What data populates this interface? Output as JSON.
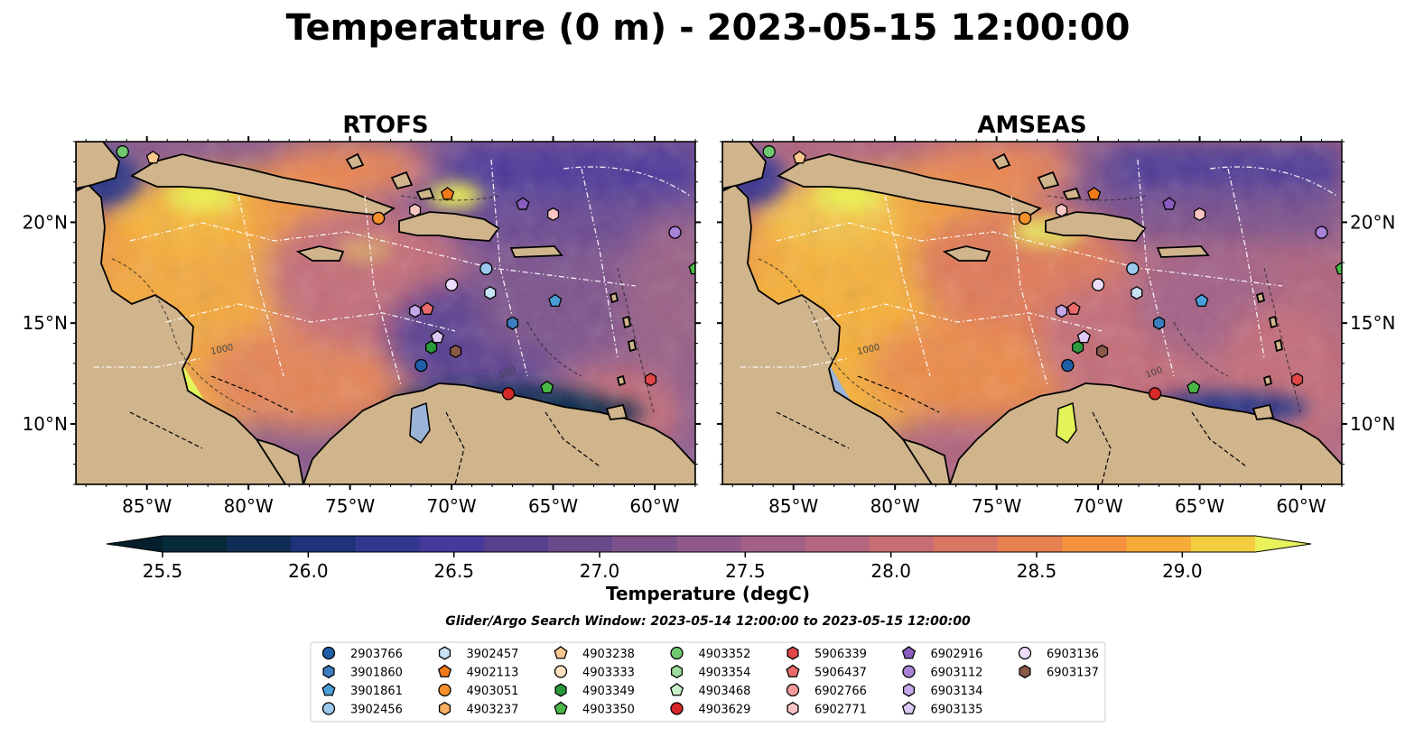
{
  "figure": {
    "title": "Temperature (0 m) - 2023-05-15 12:00:00",
    "search_window": "Glider/Argo Search Window: 2023-05-14 12:00:00 to 2023-05-15 12:00:00"
  },
  "panels": [
    {
      "title": "RTOFS"
    },
    {
      "title": "AMSEAS"
    }
  ],
  "axes": {
    "lon_range": [
      -88.5,
      -58.0
    ],
    "lat_range": [
      7.0,
      24.0
    ],
    "x_ticks": [
      {
        "value": -85,
        "label": "85°W"
      },
      {
        "value": -80,
        "label": "80°W"
      },
      {
        "value": -75,
        "label": "75°W"
      },
      {
        "value": -70,
        "label": "70°W"
      },
      {
        "value": -65,
        "label": "65°W"
      },
      {
        "value": -60,
        "label": "60°W"
      }
    ],
    "y_ticks": [
      {
        "value": 20,
        "label": "20°N"
      },
      {
        "value": 15,
        "label": "15°N"
      },
      {
        "value": 10,
        "label": "10°N"
      }
    ],
    "contour_labels": [
      "1000",
      "100"
    ]
  },
  "colorbar": {
    "label": "Temperature (degC)",
    "min": 25.5,
    "max": 29.25,
    "step": 0.25,
    "extend": "both",
    "ticks": [
      {
        "value": 25.5,
        "label": "25.5"
      },
      {
        "value": 26.0,
        "label": "26.0"
      },
      {
        "value": 26.5,
        "label": "26.5"
      },
      {
        "value": 27.0,
        "label": "27.0"
      },
      {
        "value": 27.5,
        "label": "27.5"
      },
      {
        "value": 28.0,
        "label": "28.0"
      },
      {
        "value": 28.5,
        "label": "28.5"
      },
      {
        "value": 29.0,
        "label": "29.0"
      }
    ],
    "colors": [
      "#062a3a",
      "#0f2e55",
      "#1e3278",
      "#303890",
      "#45399a",
      "#59408e",
      "#6b4a8c",
      "#7d528c",
      "#8f5a8a",
      "#a26086",
      "#b5677f",
      "#c86d74",
      "#d97564",
      "#e88150",
      "#f4923e",
      "#f6ab38",
      "#f2cd3f"
    ],
    "under_color": "#041e2b",
    "over_color": "#e9f25a"
  },
  "colors": {
    "land": "#d0b48c",
    "water": "#9ab4d8",
    "pacific_warm": "#e3f45a"
  },
  "legend": {
    "items": [
      {
        "id": "2903766",
        "marker": "circle",
        "color": "#1f5fa8"
      },
      {
        "id": "3901860",
        "marker": "hexagon",
        "color": "#3c7fc0"
      },
      {
        "id": "3901861",
        "marker": "pentagon",
        "color": "#4a9fd8"
      },
      {
        "id": "3902456",
        "marker": "circle",
        "color": "#9cc8ee"
      },
      {
        "id": "3902457",
        "marker": "hexagon",
        "color": "#c8e2f6"
      },
      {
        "id": "4902113",
        "marker": "pentagon",
        "color": "#f07a1a"
      },
      {
        "id": "4903051",
        "marker": "circle",
        "color": "#f5902a"
      },
      {
        "id": "4903237",
        "marker": "hexagon",
        "color": "#f9b060"
      },
      {
        "id": "4903238",
        "marker": "pentagon",
        "color": "#fbc890"
      },
      {
        "id": "4903333",
        "marker": "circle",
        "color": "#fde0c0"
      },
      {
        "id": "4903349",
        "marker": "hexagon",
        "color": "#2a9a3a"
      },
      {
        "id": "4903350",
        "marker": "pentagon",
        "color": "#4ab848"
      },
      {
        "id": "4903352",
        "marker": "circle",
        "color": "#70c870"
      },
      {
        "id": "4903354",
        "marker": "hexagon",
        "color": "#a0dca0"
      },
      {
        "id": "4903468",
        "marker": "pentagon",
        "color": "#c8f0c8"
      },
      {
        "id": "4903629",
        "marker": "circle",
        "color": "#d62828"
      },
      {
        "id": "5906339",
        "marker": "hexagon",
        "color": "#e04848"
      },
      {
        "id": "5906437",
        "marker": "pentagon",
        "color": "#ea6a6a"
      },
      {
        "id": "6902766",
        "marker": "circle",
        "color": "#f49a9a"
      },
      {
        "id": "6902771",
        "marker": "hexagon",
        "color": "#f9c4c4"
      },
      {
        "id": "6902916",
        "marker": "pentagon",
        "color": "#8a5cc0"
      },
      {
        "id": "6903112",
        "marker": "circle",
        "color": "#a882d6"
      },
      {
        "id": "6903134",
        "marker": "hexagon",
        "color": "#c4a8e8"
      },
      {
        "id": "6903135",
        "marker": "pentagon",
        "color": "#dcc8f4"
      },
      {
        "id": "6903136",
        "marker": "circle",
        "color": "#ecdcfa"
      },
      {
        "id": "6903137",
        "marker": "hexagon",
        "color": "#8a5a48"
      }
    ]
  },
  "floats": [
    {
      "id": "4903352",
      "lon": -86.2,
      "lat": 23.5
    },
    {
      "id": "4903238",
      "lon": -84.7,
      "lat": 23.2
    },
    {
      "id": "4903051",
      "lon": -73.6,
      "lat": 20.2
    },
    {
      "id": "6902771",
      "lon": -71.8,
      "lat": 20.6
    },
    {
      "id": "4902113",
      "lon": -70.2,
      "lat": 21.4
    },
    {
      "id": "6902916",
      "lon": -66.5,
      "lat": 20.9
    },
    {
      "id": "6902771",
      "lon": -65.0,
      "lat": 20.4
    },
    {
      "id": "6903112",
      "lon": -59.0,
      "lat": 19.5
    },
    {
      "id": "3902456",
      "lon": -68.3,
      "lat": 17.7
    },
    {
      "id": "4903350",
      "lon": -58.0,
      "lat": 17.7
    },
    {
      "id": "6903136",
      "lon": -70.0,
      "lat": 16.9
    },
    {
      "id": "3902457",
      "lon": -68.1,
      "lat": 16.5
    },
    {
      "id": "3901861",
      "lon": -64.9,
      "lat": 16.1
    },
    {
      "id": "6903134",
      "lon": -71.8,
      "lat": 15.6
    },
    {
      "id": "5906437",
      "lon": -71.2,
      "lat": 15.7
    },
    {
      "id": "3901860",
      "lon": -67.0,
      "lat": 15.0
    },
    {
      "id": "6903135",
      "lon": -70.7,
      "lat": 14.3
    },
    {
      "id": "4903349",
      "lon": -71.0,
      "lat": 13.8
    },
    {
      "id": "6903137",
      "lon": -69.8,
      "lat": 13.6
    },
    {
      "id": "2903766",
      "lon": -71.5,
      "lat": 12.9
    },
    {
      "id": "5906339",
      "lon": -60.2,
      "lat": 12.2
    },
    {
      "id": "4903350",
      "lon": -65.3,
      "lat": 11.8
    },
    {
      "id": "4903629",
      "lon": -67.2,
      "lat": 11.5
    }
  ]
}
